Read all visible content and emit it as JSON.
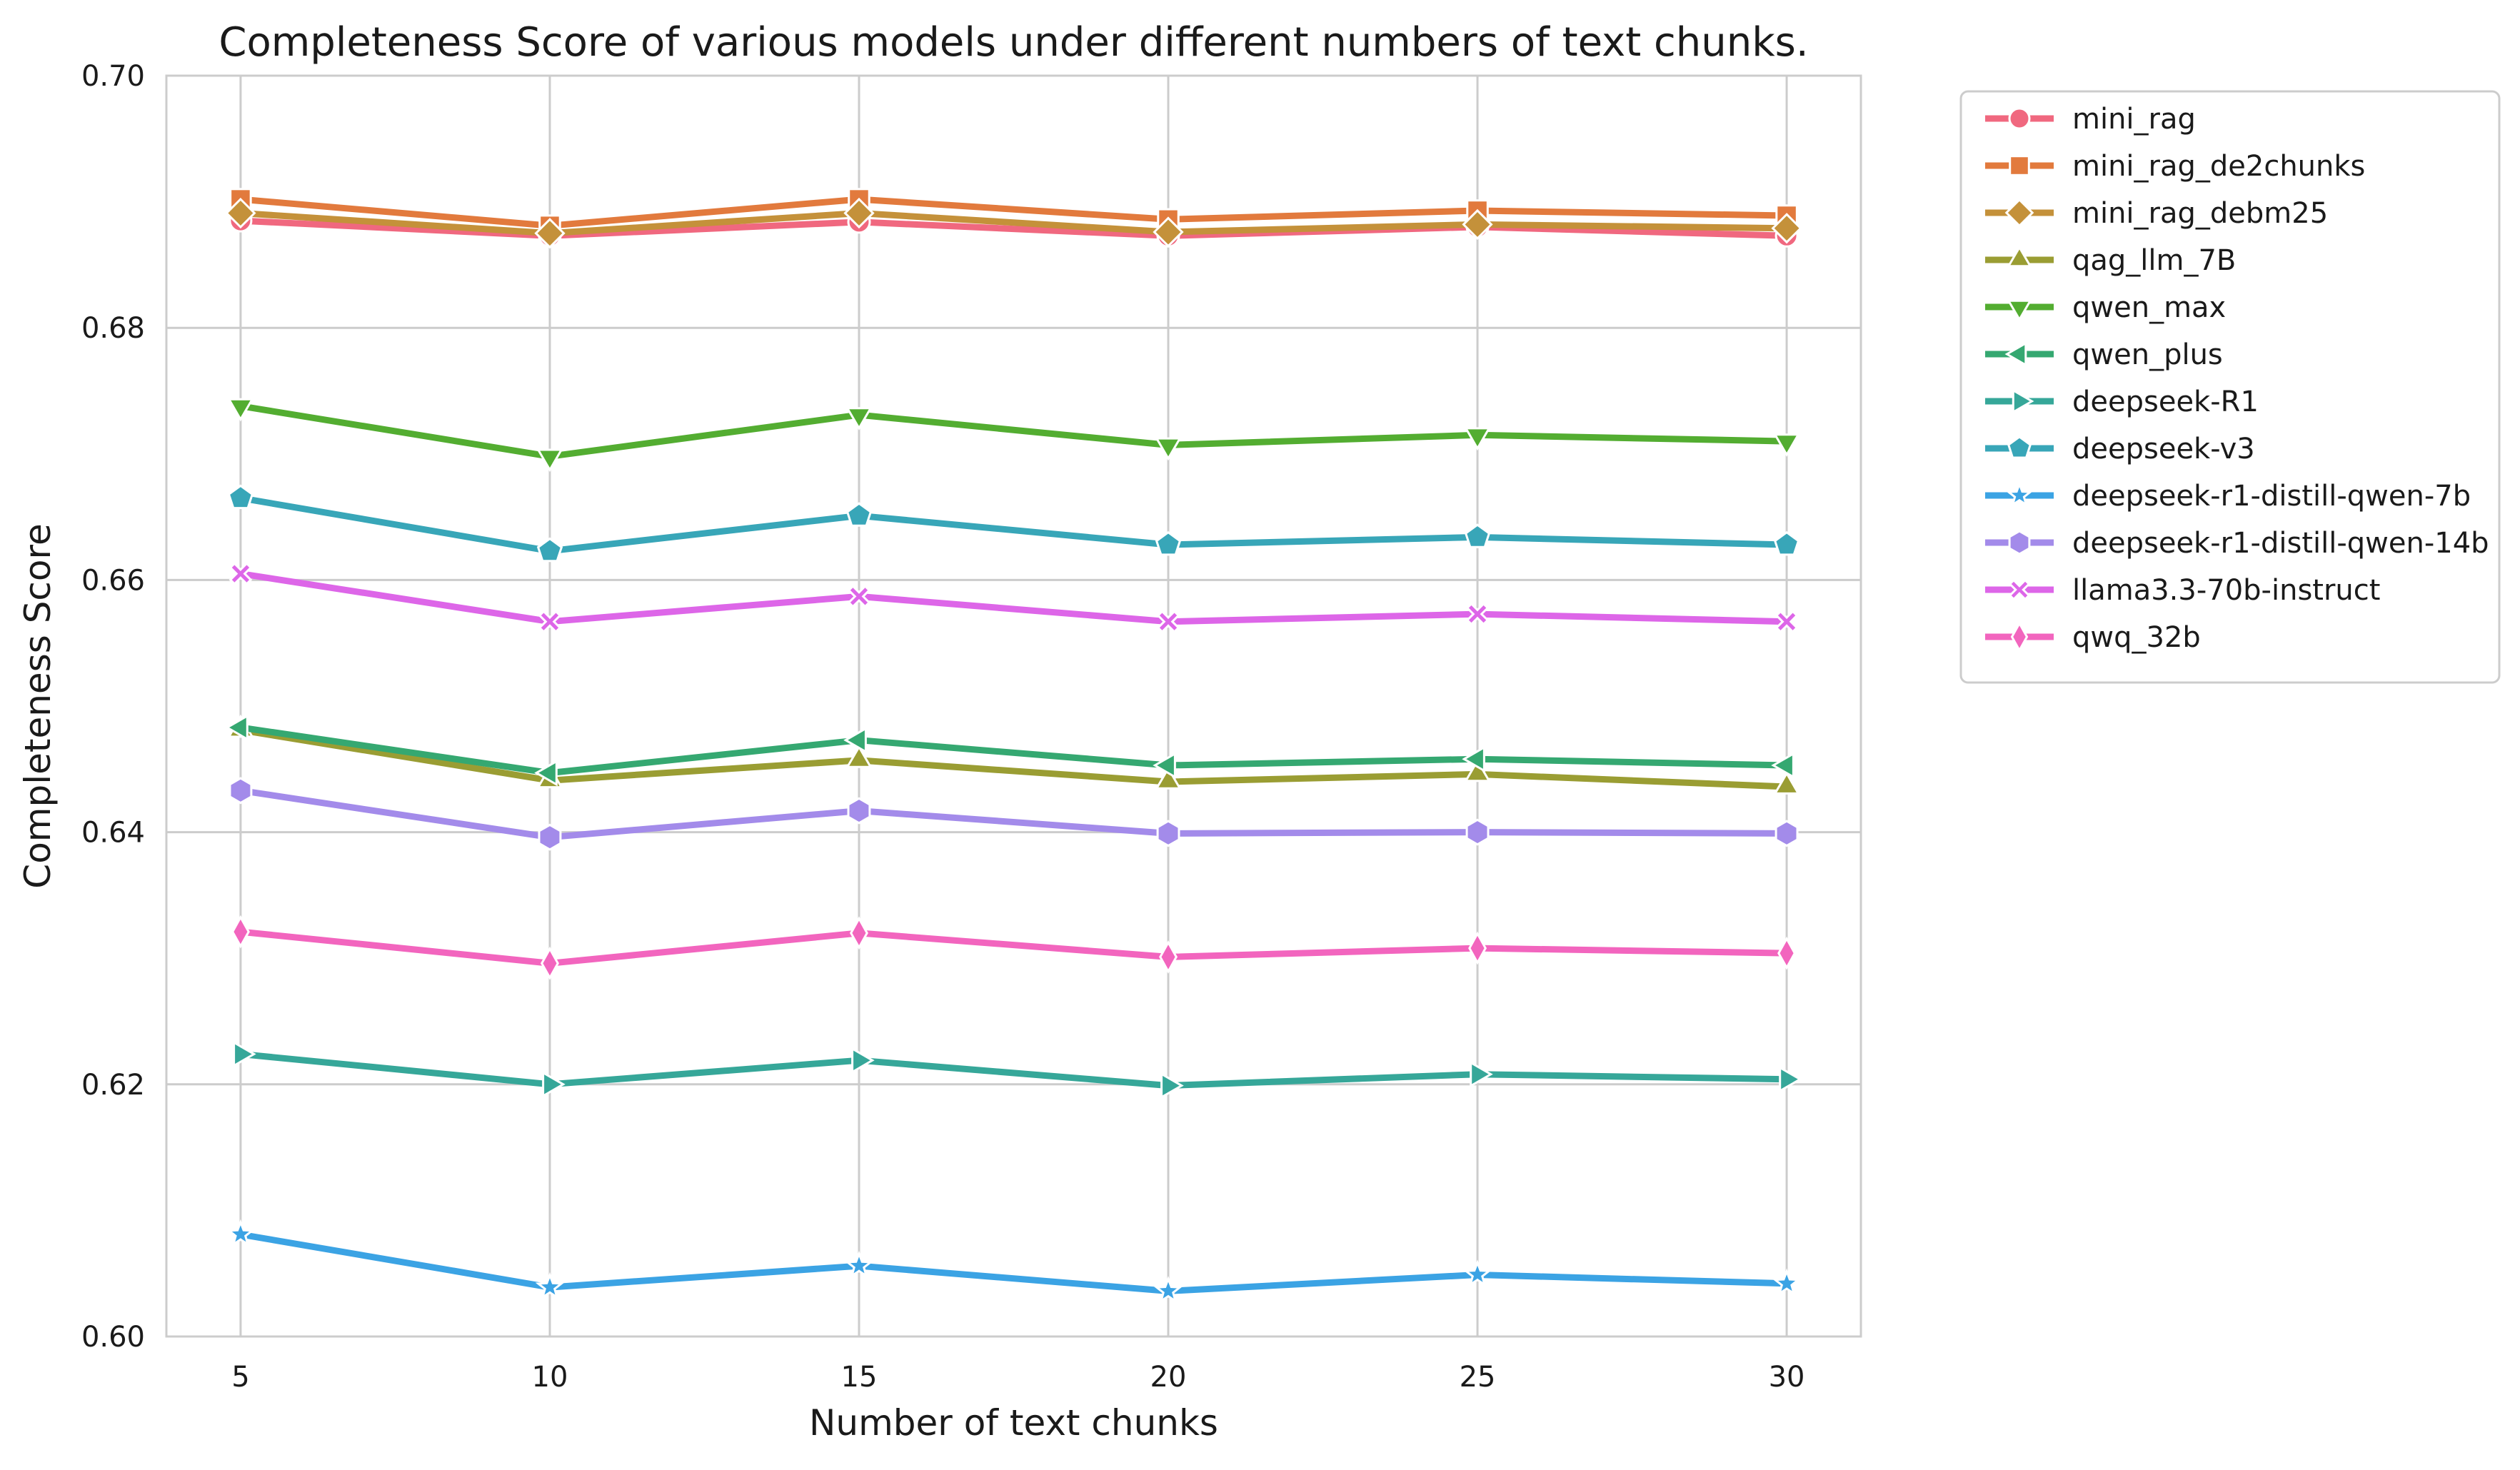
{
  "chart_data": {
    "type": "line",
    "title": "Completeness Score of various models under different numbers of text chunks.",
    "xlabel": "Number of text chunks",
    "ylabel": "Completeness Score",
    "x": [
      5,
      10,
      15,
      20,
      25,
      30
    ],
    "xlim": [
      3.8,
      31.2
    ],
    "ylim": [
      0.6,
      0.7
    ],
    "yticks": [
      "0.60",
      "0.62",
      "0.64",
      "0.66",
      "0.68",
      "0.70"
    ],
    "xticks": [
      "5",
      "10",
      "15",
      "20",
      "25",
      "30"
    ],
    "grid": true,
    "legend_position": "outside-right",
    "series": [
      {
        "name": "mini_rag",
        "color": "#f0687f",
        "marker": "circle",
        "values": [
          0.6885,
          0.6873,
          0.6884,
          0.6873,
          0.688,
          0.6873
        ]
      },
      {
        "name": "mini_rag_de2chunks",
        "color": "#e27a3d",
        "marker": "square",
        "values": [
          0.6902,
          0.6881,
          0.6902,
          0.6886,
          0.6893,
          0.6889
        ]
      },
      {
        "name": "mini_rag_debm25",
        "color": "#c4913a",
        "marker": "diamond",
        "values": [
          0.6891,
          0.6875,
          0.6891,
          0.6876,
          0.6882,
          0.6879
        ]
      },
      {
        "name": "qag_llm_7B",
        "color": "#9a9d33",
        "marker": "triangle-up",
        "values": [
          0.6481,
          0.6441,
          0.6457,
          0.644,
          0.6446,
          0.6436
        ]
      },
      {
        "name": "qwen_max",
        "color": "#53ad31",
        "marker": "triangle-down",
        "values": [
          0.6738,
          0.6698,
          0.6731,
          0.6707,
          0.6715,
          0.671
        ]
      },
      {
        "name": "qwen_plus",
        "color": "#35a871",
        "marker": "triangle-left",
        "values": [
          0.6483,
          0.6447,
          0.6473,
          0.6453,
          0.6458,
          0.6453
        ]
      },
      {
        "name": "deepseek-R1",
        "color": "#36a799",
        "marker": "triangle-right",
        "values": [
          0.6224,
          0.62,
          0.6219,
          0.6199,
          0.6208,
          0.6204
        ]
      },
      {
        "name": "deepseek-v3",
        "color": "#38a6b8",
        "marker": "pentagon",
        "values": [
          0.6665,
          0.6623,
          0.6651,
          0.6628,
          0.6634,
          0.6628
        ]
      },
      {
        "name": "deepseek-r1-distill-qwen-7b",
        "color": "#3ba3e4",
        "marker": "star",
        "values": [
          0.6081,
          0.6039,
          0.6056,
          0.6036,
          0.6049,
          0.6042
        ]
      },
      {
        "name": "deepseek-r1-distill-qwen-14b",
        "color": "#a38bea",
        "marker": "hexagon",
        "values": [
          0.6433,
          0.6396,
          0.6417,
          0.6399,
          0.64,
          0.6399
        ]
      },
      {
        "name": "llama3.3-70b-instruct",
        "color": "#dd66e8",
        "marker": "x",
        "values": [
          0.6605,
          0.6567,
          0.6587,
          0.6567,
          0.6573,
          0.6567
        ]
      },
      {
        "name": "qwq_32b",
        "color": "#f265be",
        "marker": "thin-diamond",
        "values": [
          0.6321,
          0.6296,
          0.632,
          0.6301,
          0.6308,
          0.6304
        ]
      }
    ]
  }
}
